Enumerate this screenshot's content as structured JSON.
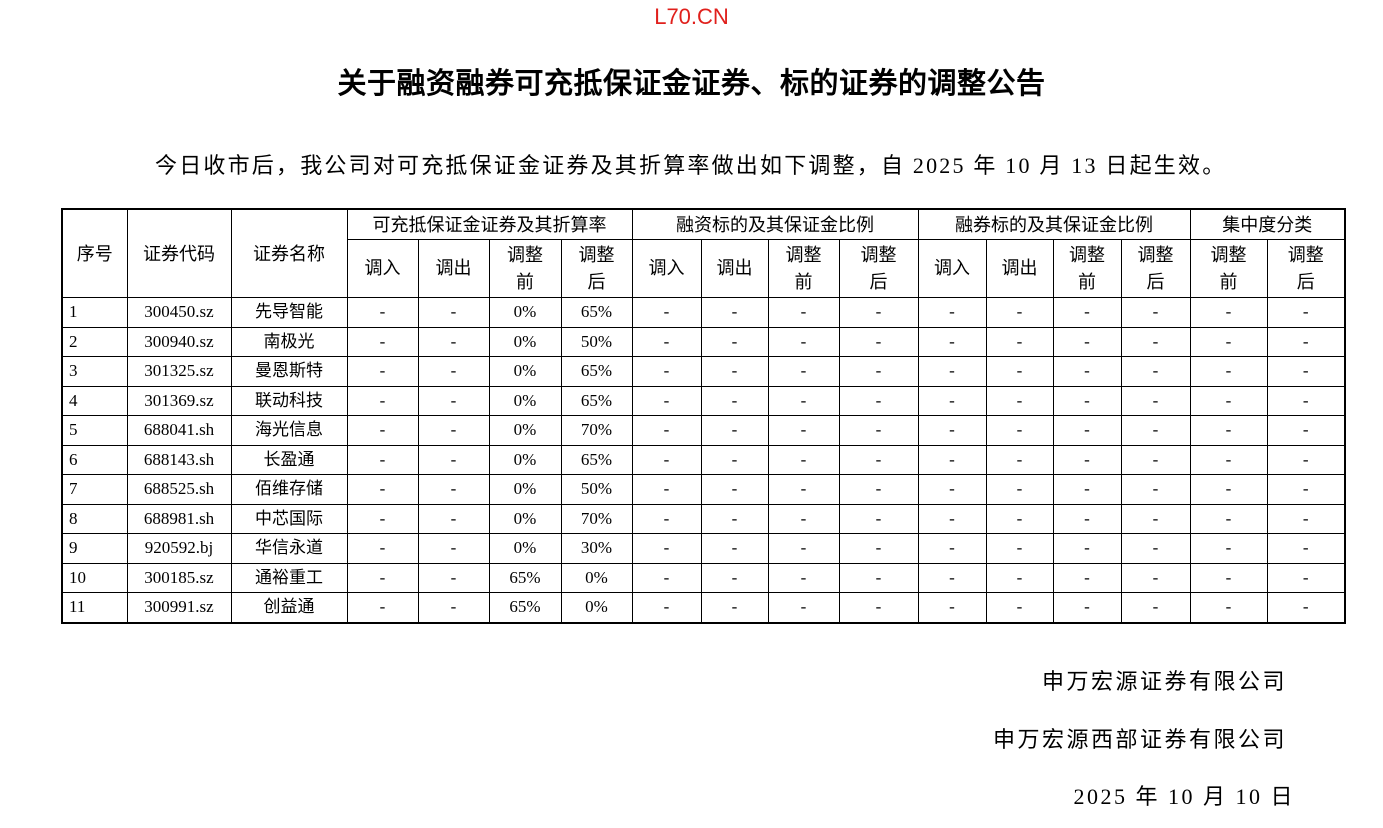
{
  "watermark": "L70.CN",
  "title": "关于融资融券可充抵保证金证券、标的证券的调整公告",
  "intro": "今日收市后，我公司对可充抵保证金证券及其折算率做出如下调整，自 2025 年 10 月 13 日起生效。",
  "table": {
    "headers": {
      "seq": "序号",
      "code": "证券代码",
      "name": "证券名称",
      "groups": [
        "可充抵保证金证券及其折算率",
        "融资标的及其保证金比例",
        "融券标的及其保证金比例",
        "集中度分类"
      ],
      "sub_in": "调入",
      "sub_out": "调出",
      "sub_before": "调整\n前",
      "sub_after": "调整\n后"
    },
    "rows": [
      [
        "1",
        "300450.sz",
        "先导智能",
        "-",
        "-",
        "0%",
        "65%",
        "-",
        "-",
        "-",
        "-",
        "-",
        "-",
        "-",
        "-",
        "-",
        "-"
      ],
      [
        "2",
        "300940.sz",
        "南极光",
        "-",
        "-",
        "0%",
        "50%",
        "-",
        "-",
        "-",
        "-",
        "-",
        "-",
        "-",
        "-",
        "-",
        "-"
      ],
      [
        "3",
        "301325.sz",
        "曼恩斯特",
        "-",
        "-",
        "0%",
        "65%",
        "-",
        "-",
        "-",
        "-",
        "-",
        "-",
        "-",
        "-",
        "-",
        "-"
      ],
      [
        "4",
        "301369.sz",
        "联动科技",
        "-",
        "-",
        "0%",
        "65%",
        "-",
        "-",
        "-",
        "-",
        "-",
        "-",
        "-",
        "-",
        "-",
        "-"
      ],
      [
        "5",
        "688041.sh",
        "海光信息",
        "-",
        "-",
        "0%",
        "70%",
        "-",
        "-",
        "-",
        "-",
        "-",
        "-",
        "-",
        "-",
        "-",
        "-"
      ],
      [
        "6",
        "688143.sh",
        "长盈通",
        "-",
        "-",
        "0%",
        "65%",
        "-",
        "-",
        "-",
        "-",
        "-",
        "-",
        "-",
        "-",
        "-",
        "-"
      ],
      [
        "7",
        "688525.sh",
        "佰维存储",
        "-",
        "-",
        "0%",
        "50%",
        "-",
        "-",
        "-",
        "-",
        "-",
        "-",
        "-",
        "-",
        "-",
        "-"
      ],
      [
        "8",
        "688981.sh",
        "中芯国际",
        "-",
        "-",
        "0%",
        "70%",
        "-",
        "-",
        "-",
        "-",
        "-",
        "-",
        "-",
        "-",
        "-",
        "-"
      ],
      [
        "9",
        "920592.bj",
        "华信永道",
        "-",
        "-",
        "0%",
        "30%",
        "-",
        "-",
        "-",
        "-",
        "-",
        "-",
        "-",
        "-",
        "-",
        "-"
      ],
      [
        "10",
        "300185.sz",
        "通裕重工",
        "-",
        "-",
        "65%",
        "0%",
        "-",
        "-",
        "-",
        "-",
        "-",
        "-",
        "-",
        "-",
        "-",
        "-"
      ],
      [
        "11",
        "300991.sz",
        "创益通",
        "-",
        "-",
        "65%",
        "0%",
        "-",
        "-",
        "-",
        "-",
        "-",
        "-",
        "-",
        "-",
        "-",
        "-"
      ]
    ]
  },
  "signature": {
    "company1": "申万宏源证券有限公司",
    "company2": "申万宏源西部证券有限公司",
    "date": "2025 年 10 月 10 日"
  }
}
